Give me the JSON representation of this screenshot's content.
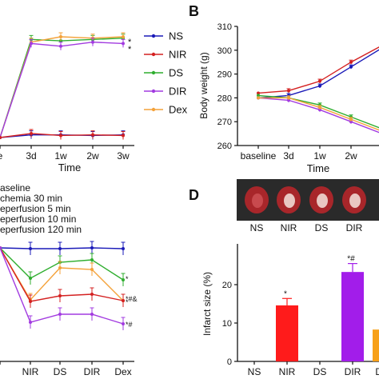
{
  "panels": {
    "b_letter": "B",
    "d_letter": "D"
  },
  "legend": [
    {
      "label": "NS",
      "color": "#1a1ab8"
    },
    {
      "label": "NIR",
      "color": "#d42020"
    },
    {
      "label": "DS",
      "color": "#2fae2f"
    },
    {
      "label": "DIR",
      "color": "#a23be0"
    },
    {
      "label": "Dex",
      "color": "#f4a23a"
    }
  ],
  "timeline": [
    "aseline",
    "chemia 30 min",
    "eperfusion 5 min",
    "eperfusion 10 min",
    "eperfusion 120 min"
  ],
  "chart_data": [
    {
      "panel": "A-top",
      "type": "line",
      "categories": [
        "baseline",
        "3d",
        "1w",
        "2w",
        "3w"
      ],
      "tick_labels": [
        "e",
        "3d",
        "1w",
        "2w",
        "3w"
      ],
      "xlabel": "Time",
      "series": [
        {
          "name": "DS",
          "color": "#2fae2f",
          "values": [
            0,
            7.3,
            7.2,
            7.3,
            7.4
          ]
        },
        {
          "name": "Dex",
          "color": "#f4a23a",
          "values": [
            0,
            7.1,
            7.5,
            7.4,
            7.5
          ]
        },
        {
          "name": "DIR",
          "color": "#a23be0",
          "values": [
            0,
            7.0,
            6.8,
            7.1,
            7.0
          ]
        },
        {
          "name": "NS",
          "color": "#1a1ab8",
          "values": [
            0,
            0.2,
            0.2,
            0.15,
            0.2
          ]
        },
        {
          "name": "NIR",
          "color": "#d42020",
          "values": [
            0,
            0.3,
            0.15,
            0.2,
            0.15
          ]
        }
      ],
      "annotations": [
        "*",
        "*"
      ]
    },
    {
      "panel": "B",
      "type": "line",
      "categories": [
        "baseline",
        "3d",
        "1w",
        "2w",
        "3w"
      ],
      "tick_labels": [
        "baseline",
        "3d",
        "1w",
        "2w"
      ],
      "xlabel": "Time",
      "ylabel": "Body weight (g)",
      "ylim": [
        260,
        310
      ],
      "yticks": [
        260,
        270,
        280,
        290,
        300,
        310
      ],
      "series": [
        {
          "name": "NS",
          "color": "#1a1ab8",
          "values": [
            280,
            281,
            285,
            293,
            301
          ]
        },
        {
          "name": "NIR",
          "color": "#d42020",
          "values": [
            282,
            283,
            287,
            295,
            302
          ]
        },
        {
          "name": "DS",
          "color": "#2fae2f",
          "values": [
            281,
            280,
            277,
            272,
            267
          ]
        },
        {
          "name": "DIR",
          "color": "#a23be0",
          "values": [
            280,
            279,
            275,
            270,
            265
          ]
        },
        {
          "name": "Dex",
          "color": "#f4a23a",
          "values": [
            280,
            280,
            276,
            271,
            266
          ]
        }
      ]
    },
    {
      "panel": "C",
      "type": "line",
      "categories": [
        "NS",
        "NIR",
        "DS",
        "DIR",
        "Dex"
      ],
      "tick_labels": [
        "",
        "NIR",
        "DS",
        "DIR",
        "Dex"
      ],
      "series": [
        {
          "name": "NS",
          "color": "#1a1ab8",
          "values": [
            310,
            311,
            311,
            310,
            311
          ]
        },
        {
          "name": "DS",
          "color": "#2fae2f",
          "values": [
            310,
            348,
            328,
            325,
            350
          ]
        },
        {
          "name": "Dex",
          "color": "#f4a23a",
          "values": [
            310,
            375,
            335,
            337,
            376
          ]
        },
        {
          "name": "NIR",
          "color": "#d42020",
          "values": [
            310,
            377,
            370,
            368,
            376
          ]
        },
        {
          "name": "DIR",
          "color": "#a23be0",
          "values": [
            310,
            403,
            393,
            393,
            405
          ]
        }
      ],
      "annotations": [
        "*",
        "*#&",
        "*",
        "*#"
      ]
    },
    {
      "panel": "D",
      "type": "bar",
      "categories": [
        "NS",
        "NIR",
        "DS",
        "DIR",
        "Dex"
      ],
      "ylabel": "Infarct size (%)",
      "ylim": [
        0,
        30
      ],
      "yticks": [
        0,
        10,
        20
      ],
      "values": [
        0,
        14.6,
        0,
        23.3,
        8.3
      ],
      "errors": [
        0,
        1.8,
        0,
        2.2,
        0
      ],
      "colors": [
        "#1a1ab8",
        "#ff1b1b",
        "#2fae2f",
        "#a21dea",
        "#f7a11a"
      ],
      "annotations": [
        {
          "category": "NIR",
          "text": "*"
        },
        {
          "category": "DIR",
          "text": "*#"
        }
      ],
      "photo_labels": [
        "NS",
        "NIR",
        "DS",
        "DIR"
      ]
    }
  ]
}
